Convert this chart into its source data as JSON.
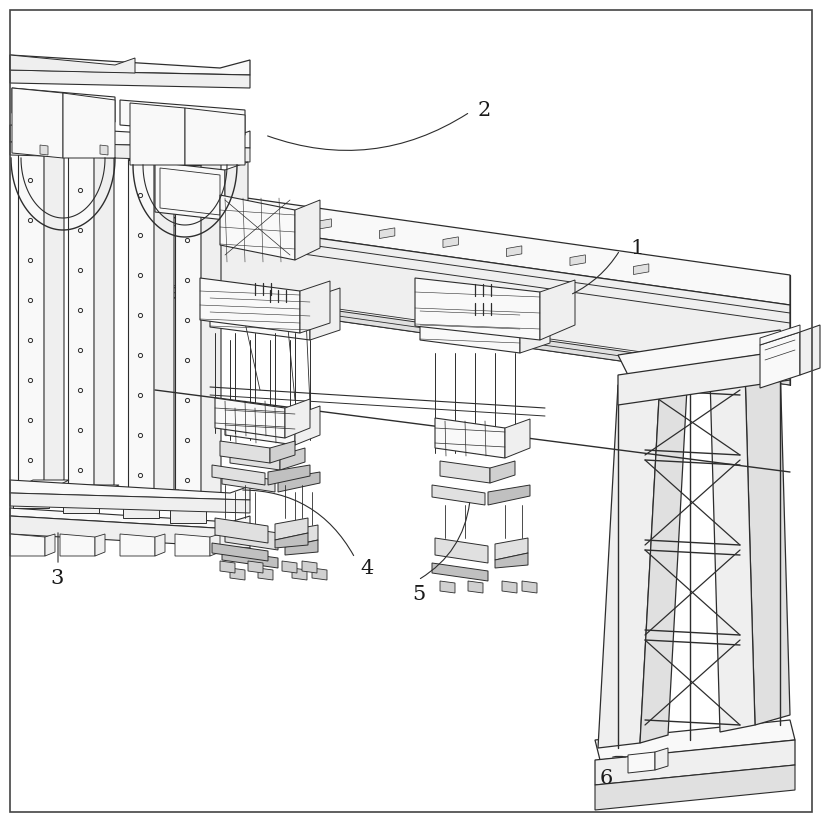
{
  "background_color": "#ffffff",
  "line_color": "#2d2d2d",
  "figsize": [
    8.22,
    8.22
  ],
  "dpi": 100,
  "c_white": "#f9f9f9",
  "c_light": "#efefef",
  "c_mid": "#e0e0e0",
  "c_dark": "#d0d0d0",
  "c_darker": "#c0c0c0"
}
